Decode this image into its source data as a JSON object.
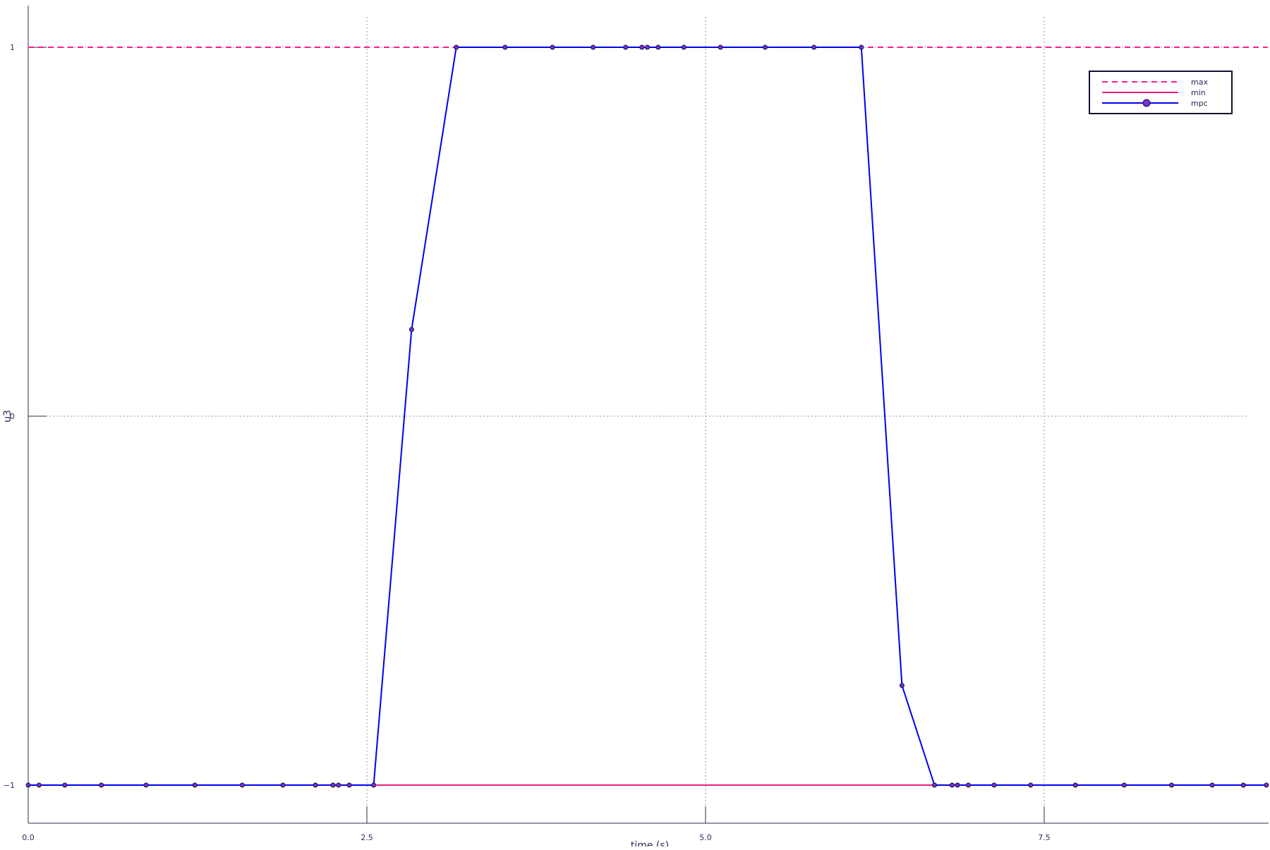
{
  "chart_data": {
    "type": "line",
    "xlabel": "time (s)",
    "ylabel": "u3",
    "xlim": [
      0,
      9.15
    ],
    "ylim": [
      -1.1,
      1.1
    ],
    "x_ticks": [
      0.0,
      2.5,
      5.0,
      7.5
    ],
    "x_tick_labels": [
      "0.0",
      "2.5",
      "5.0",
      "7.5"
    ],
    "y_ticks": [
      -1,
      0,
      1
    ],
    "y_tick_labels": [
      "−1",
      "0",
      "1"
    ],
    "grid": true,
    "legend_position": "top-right",
    "series": [
      {
        "name": "max",
        "style": "dashed",
        "color": "#ff1a8c",
        "x": [
          0,
          9.15
        ],
        "y": [
          1,
          1
        ]
      },
      {
        "name": "min",
        "style": "solid",
        "color": "#e8207a",
        "x": [
          0,
          9.15
        ],
        "y": [
          -1,
          -1
        ]
      },
      {
        "name": "mpc",
        "style": "line-markers",
        "color": "#0000ee",
        "marker_fill": "#7b2fd6",
        "x": [
          0.0,
          0.08,
          0.27,
          0.54,
          0.87,
          1.23,
          1.58,
          1.88,
          2.12,
          2.25,
          2.29,
          2.37,
          2.55,
          2.83,
          3.16,
          3.52,
          3.87,
          4.17,
          4.41,
          4.53,
          4.57,
          4.65,
          4.84,
          5.11,
          5.44,
          5.8,
          6.15,
          6.45,
          6.69,
          6.82,
          6.86,
          6.94,
          7.13,
          7.4,
          7.73,
          8.09,
          8.44,
          8.74,
          8.97,
          9.14
        ],
        "y": [
          -1,
          -1,
          -1,
          -1,
          -1,
          -1,
          -1,
          -1,
          -1,
          -1,
          -1,
          -1,
          -1,
          0.235,
          1,
          1,
          1,
          1,
          1,
          1,
          1,
          1,
          1,
          1,
          1,
          1,
          1,
          -0.73,
          -1,
          -1,
          -1,
          -1,
          -1,
          -1,
          -1,
          -1,
          -1,
          -1,
          -1,
          -1
        ]
      }
    ]
  }
}
